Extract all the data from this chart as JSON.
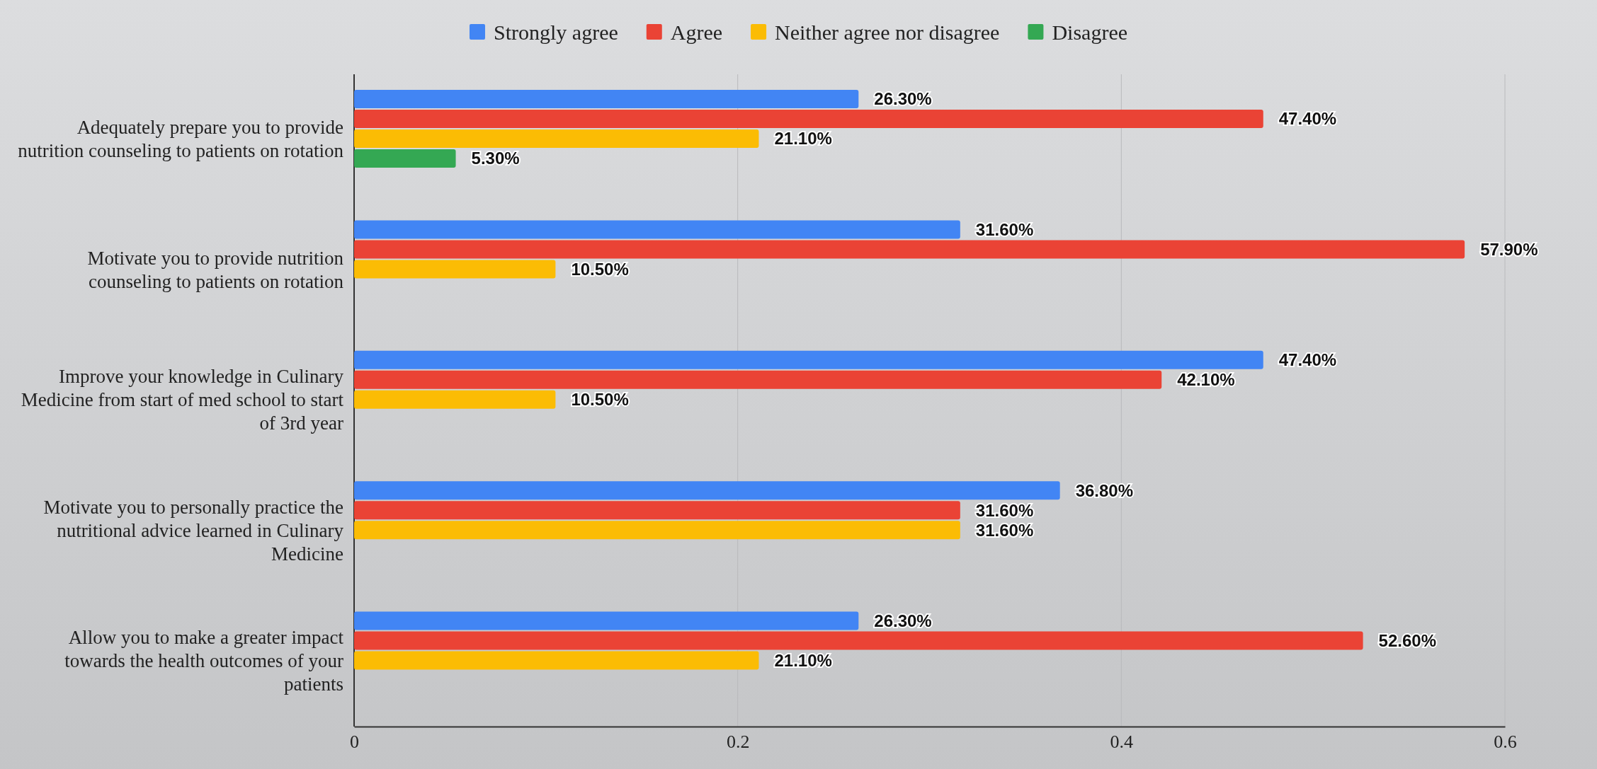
{
  "chart_data": {
    "type": "bar",
    "orientation": "horizontal",
    "categories": [
      "Adequately prepare you to provide nutrition counseling to patients on rotation",
      "Motivate you to provide nutrition counseling to patients on rotation",
      "Improve your knowledge in Culinary Medicine from start of med school to start of 3rd year",
      "Motivate you to personally practice the nutritional advice learned in Culinary Medicine",
      "Allow you to make a greater impact towards the health outcomes of your patients"
    ],
    "series": [
      {
        "name": "Strongly agree",
        "color": "#4285f4",
        "values": [
          0.263,
          0.316,
          0.474,
          0.368,
          0.263
        ],
        "value_labels": [
          "26.30%",
          "31.60%",
          "47.40%",
          "36.80%",
          "26.30%"
        ]
      },
      {
        "name": "Agree",
        "color": "#ea4335",
        "values": [
          0.474,
          0.579,
          0.421,
          0.316,
          0.526
        ],
        "value_labels": [
          "47.40%",
          "57.90%",
          "42.10%",
          "31.60%",
          "52.60%"
        ]
      },
      {
        "name": "Neither agree nor disagree",
        "color": "#fbbc04",
        "values": [
          0.211,
          0.105,
          0.105,
          0.316,
          0.211
        ],
        "value_labels": [
          "21.10%",
          "10.50%",
          "10.50%",
          "31.60%",
          "21.10%"
        ]
      },
      {
        "name": "Disagree",
        "color": "#34a853",
        "values": [
          0.053,
          null,
          null,
          null,
          null
        ],
        "value_labels": [
          "5.30%",
          null,
          null,
          null,
          null
        ]
      }
    ],
    "xlim": [
      0,
      0.6
    ],
    "xticks": [
      0,
      0.2,
      0.4,
      0.6
    ],
    "grid": "x",
    "legend": "top"
  }
}
